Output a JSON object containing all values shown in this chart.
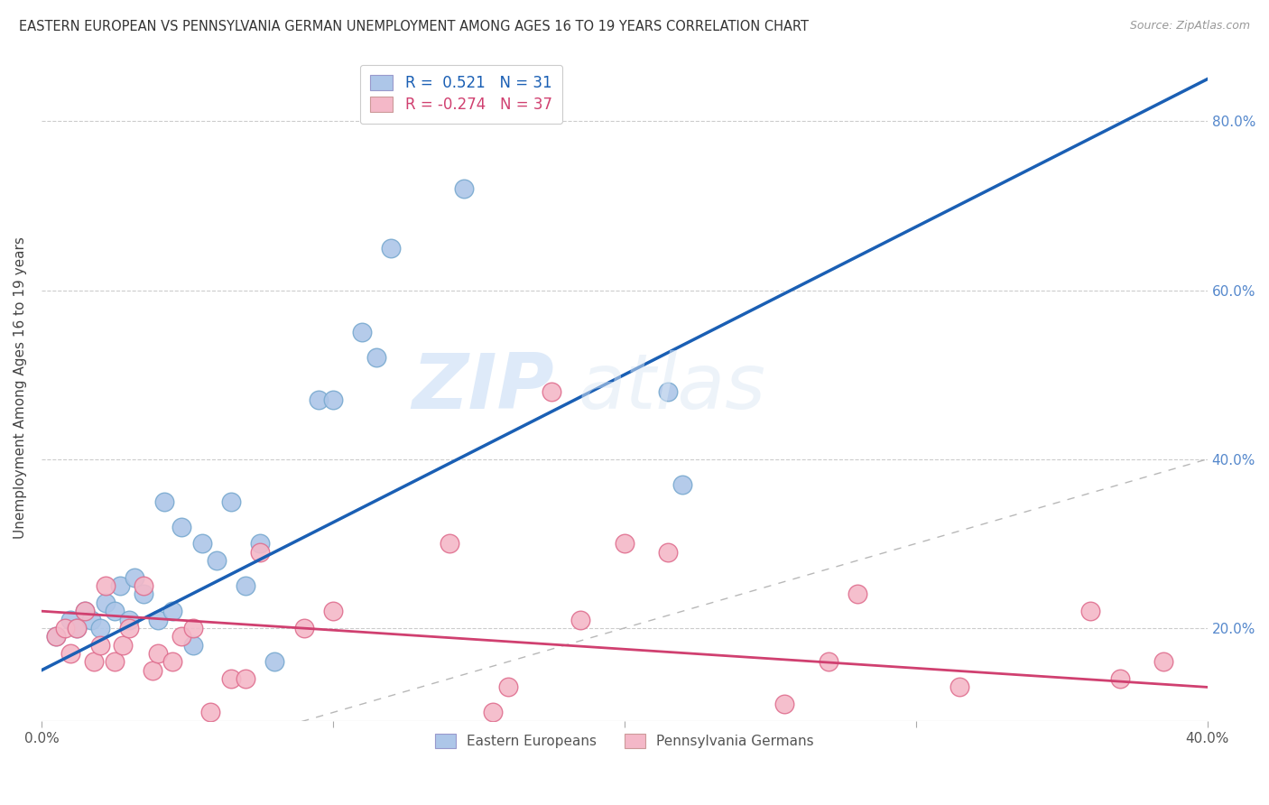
{
  "title": "EASTERN EUROPEAN VS PENNSYLVANIA GERMAN UNEMPLOYMENT AMONG AGES 16 TO 19 YEARS CORRELATION CHART",
  "source": "Source: ZipAtlas.com",
  "ylabel": "Unemployment Among Ages 16 to 19 years",
  "xlim": [
    0.0,
    0.4
  ],
  "ylim": [
    0.09,
    0.88
  ],
  "xticks": [
    0.0,
    0.1,
    0.2,
    0.3,
    0.4
  ],
  "yticks": [
    0.2,
    0.4,
    0.6,
    0.8
  ],
  "ytick_labels": [
    "20.0%",
    "40.0%",
    "60.0%",
    "80.0%"
  ],
  "xtick_labels": [
    "0.0%",
    "",
    "",
    "",
    "40.0%"
  ],
  "blue_color": "#adc6e8",
  "pink_color": "#f4b8c8",
  "blue_line_color": "#1a5fb4",
  "pink_line_color": "#d04070",
  "blue_edge_color": "#7aaad0",
  "pink_edge_color": "#e07090",
  "watermark_zip": "ZIP",
  "watermark_atlas": "atlas",
  "eastern_european_x": [
    0.005,
    0.01,
    0.012,
    0.015,
    0.017,
    0.02,
    0.022,
    0.025,
    0.027,
    0.03,
    0.032,
    0.035,
    0.04,
    0.042,
    0.045,
    0.048,
    0.052,
    0.055,
    0.06,
    0.065,
    0.07,
    0.075,
    0.08,
    0.095,
    0.1,
    0.11,
    0.115,
    0.12,
    0.145,
    0.215,
    0.22
  ],
  "eastern_european_y": [
    0.19,
    0.21,
    0.2,
    0.22,
    0.21,
    0.2,
    0.23,
    0.22,
    0.25,
    0.21,
    0.26,
    0.24,
    0.21,
    0.35,
    0.22,
    0.32,
    0.18,
    0.3,
    0.28,
    0.35,
    0.25,
    0.3,
    0.16,
    0.47,
    0.47,
    0.55,
    0.52,
    0.65,
    0.72,
    0.48,
    0.37
  ],
  "pennsylvania_german_x": [
    0.005,
    0.008,
    0.01,
    0.012,
    0.015,
    0.018,
    0.02,
    0.022,
    0.025,
    0.028,
    0.03,
    0.035,
    0.038,
    0.04,
    0.045,
    0.048,
    0.052,
    0.058,
    0.065,
    0.07,
    0.075,
    0.09,
    0.1,
    0.14,
    0.155,
    0.16,
    0.175,
    0.185,
    0.2,
    0.215,
    0.255,
    0.27,
    0.28,
    0.315,
    0.36,
    0.37,
    0.385
  ],
  "pennsylvania_german_y": [
    0.19,
    0.2,
    0.17,
    0.2,
    0.22,
    0.16,
    0.18,
    0.25,
    0.16,
    0.18,
    0.2,
    0.25,
    0.15,
    0.17,
    0.16,
    0.19,
    0.2,
    0.1,
    0.14,
    0.14,
    0.29,
    0.2,
    0.22,
    0.3,
    0.1,
    0.13,
    0.48,
    0.21,
    0.3,
    0.29,
    0.11,
    0.16,
    0.24,
    0.13,
    0.22,
    0.14,
    0.16
  ]
}
